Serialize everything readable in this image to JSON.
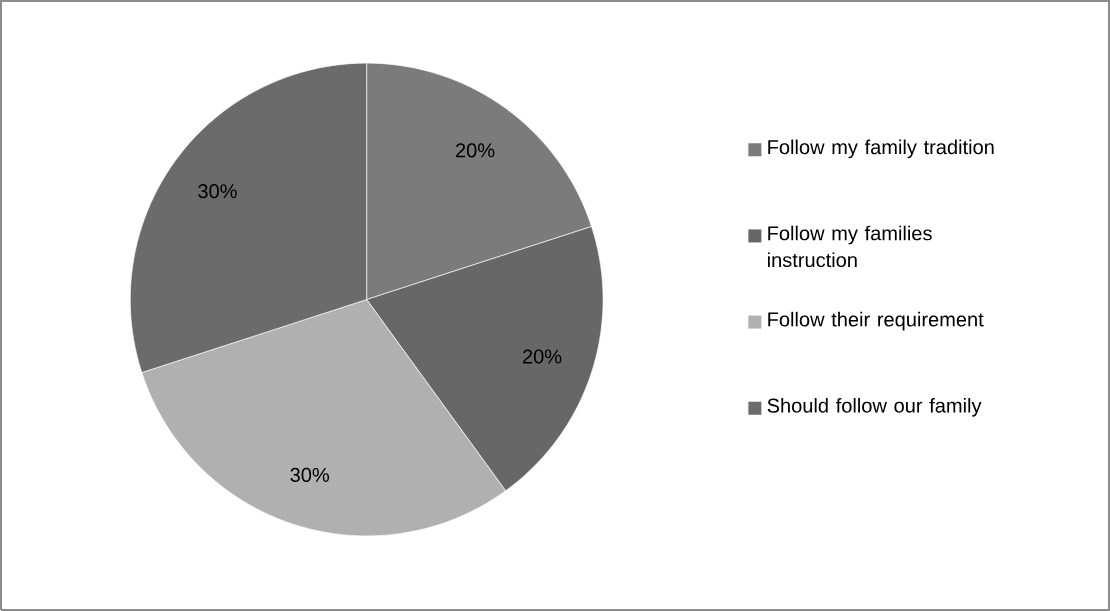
{
  "chart_data": {
    "type": "pie",
    "categories": [
      "Follow my family tradition",
      "Follow my families instruction",
      "Follow their requirement",
      "Should follow our family"
    ],
    "values": [
      20,
      20,
      30,
      30
    ],
    "value_labels": [
      "20%",
      "20%",
      "30%",
      "30%"
    ],
    "colors": [
      "#7b7b7b",
      "#676767",
      "#b0b0b0",
      "#6b6b6b"
    ],
    "legend": "right"
  }
}
